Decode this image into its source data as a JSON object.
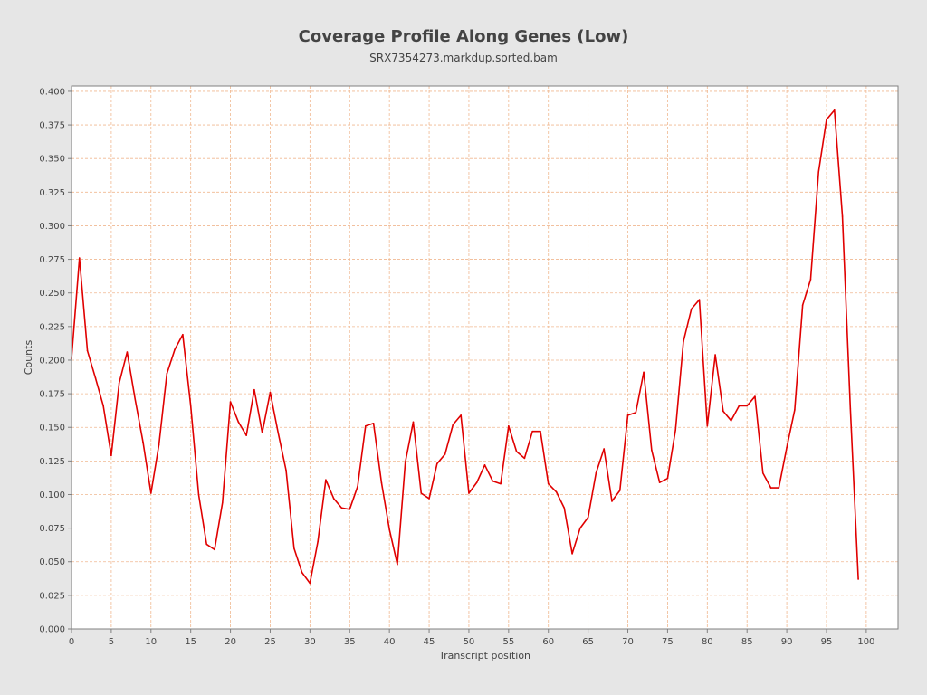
{
  "chart_data": {
    "type": "line",
    "title": "Coverage Profile Along Genes (Low)",
    "subtitle": "SRX7354273.markdup.sorted.bam",
    "xlabel": "Transcript position",
    "ylabel": "Counts",
    "xlim": [
      0,
      104
    ],
    "ylim": [
      0,
      0.404
    ],
    "x_ticks": [
      "0",
      "5",
      "10",
      "15",
      "20",
      "25",
      "30",
      "35",
      "40",
      "45",
      "50",
      "55",
      "60",
      "65",
      "70",
      "75",
      "80",
      "85",
      "90",
      "95",
      "100"
    ],
    "y_ticks": [
      "0.000",
      "0.025",
      "0.050",
      "0.075",
      "0.100",
      "0.125",
      "0.150",
      "0.175",
      "0.200",
      "0.225",
      "0.250",
      "0.275",
      "0.300",
      "0.325",
      "0.350",
      "0.375",
      "0.400"
    ],
    "grid": true,
    "colors": {
      "line": "#e00000",
      "grid": "#f0b890",
      "plot_background": "#ffffff",
      "page_background": "#e6e6e6"
    },
    "series": [
      {
        "x": [
          0,
          1,
          2,
          3,
          4,
          5,
          6,
          7,
          8,
          9,
          10,
          11,
          12,
          13,
          14,
          15,
          16,
          17,
          18,
          19,
          20,
          21,
          22,
          23,
          24,
          25,
          26,
          27,
          28,
          29,
          30,
          31,
          32,
          33,
          34,
          35,
          36,
          37,
          38,
          39,
          40,
          41,
          42,
          43,
          44,
          45,
          46,
          47,
          48,
          49,
          50,
          51,
          52,
          53,
          54,
          55,
          56,
          57,
          58,
          59,
          60,
          61,
          62,
          63,
          64,
          65,
          66,
          67,
          68,
          69,
          70,
          71,
          72,
          73,
          74,
          75,
          76,
          77,
          78,
          79,
          80,
          81,
          82,
          83,
          84,
          85,
          86,
          87,
          88,
          89,
          90,
          91,
          92,
          93,
          94,
          95,
          96,
          97,
          98,
          99
        ],
        "values": [
          0.201,
          0.276,
          0.207,
          0.187,
          0.166,
          0.129,
          0.183,
          0.206,
          0.171,
          0.139,
          0.101,
          0.137,
          0.19,
          0.208,
          0.219,
          0.166,
          0.1,
          0.063,
          0.059,
          0.094,
          0.169,
          0.154,
          0.144,
          0.178,
          0.146,
          0.176,
          0.146,
          0.118,
          0.06,
          0.042,
          0.034,
          0.065,
          0.111,
          0.097,
          0.09,
          0.089,
          0.106,
          0.151,
          0.153,
          0.109,
          0.074,
          0.048,
          0.124,
          0.154,
          0.101,
          0.097,
          0.123,
          0.13,
          0.152,
          0.159,
          0.101,
          0.109,
          0.122,
          0.11,
          0.108,
          0.151,
          0.132,
          0.127,
          0.147,
          0.147,
          0.108,
          0.102,
          0.09,
          0.056,
          0.075,
          0.083,
          0.116,
          0.134,
          0.095,
          0.103,
          0.159,
          0.161,
          0.191,
          0.133,
          0.109,
          0.112,
          0.148,
          0.214,
          0.238,
          0.245,
          0.151,
          0.204,
          0.162,
          0.155,
          0.166,
          0.166,
          0.173,
          0.116,
          0.105,
          0.105,
          0.135,
          0.163,
          0.241,
          0.26,
          0.34,
          0.379,
          0.386,
          0.307,
          0.164,
          0.037
        ]
      }
    ]
  }
}
